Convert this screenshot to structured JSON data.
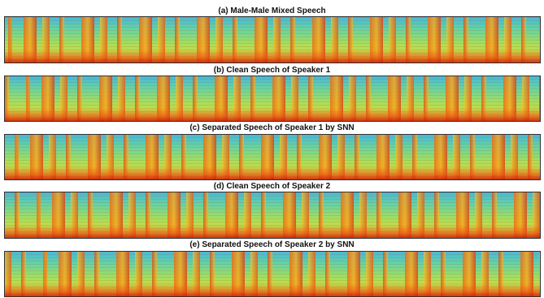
{
  "panels": [
    {
      "title": "(a) Male-Male Mixed Speech"
    },
    {
      "title": "(b) Clean Speech of Speaker 1"
    },
    {
      "title": "(c) Separated Speech of Speaker 1 by SNN"
    },
    {
      "title": "(d) Clean Speech of Speaker 2"
    },
    {
      "title": "(e) Separated Speech of Speaker 2 by SNN"
    }
  ]
}
